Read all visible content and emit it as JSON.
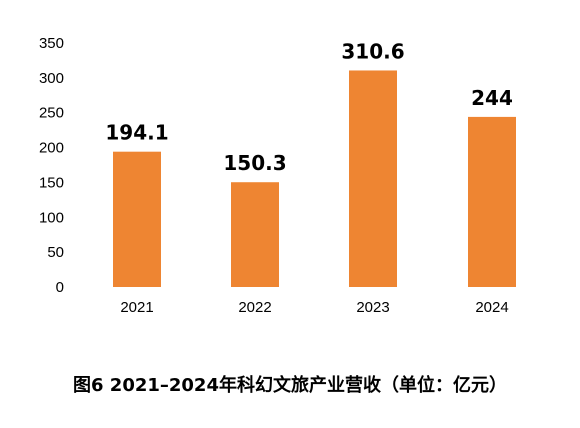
{
  "caption": "图6 2021–2024年科幻文旅产业营收（单位：亿元）",
  "colors": {
    "bar": "#EE8532",
    "text": "#000000",
    "background": "#FFFFFF"
  },
  "chart_data": {
    "type": "bar",
    "categories": [
      "2021",
      "2022",
      "2023",
      "2024"
    ],
    "values": [
      194.1,
      150.3,
      310.6,
      244
    ],
    "value_labels": [
      "194.1",
      "150.3",
      "310.6",
      "244"
    ],
    "title": "",
    "xlabel": "",
    "ylabel": "",
    "ylim": [
      0,
      350
    ],
    "yticks": [
      0,
      50,
      100,
      150,
      200,
      250,
      300,
      350
    ],
    "grid": false,
    "legend": "none"
  }
}
